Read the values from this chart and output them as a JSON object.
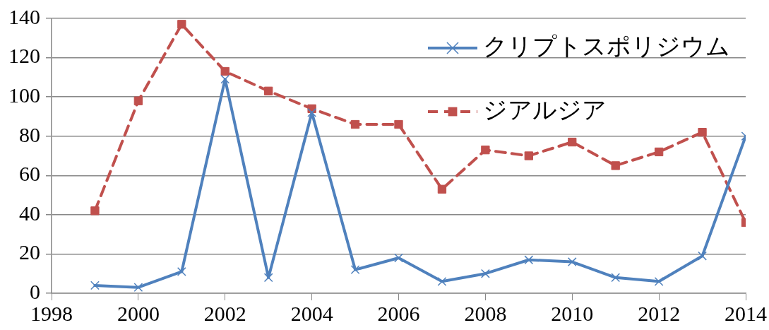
{
  "chart_data": {
    "type": "line",
    "x": [
      1999,
      2000,
      2001,
      2002,
      2003,
      2004,
      2005,
      2006,
      2007,
      2008,
      2009,
      2010,
      2011,
      2012,
      2013,
      2014
    ],
    "series": [
      {
        "name": "クリプトスポリジウム",
        "color": "#4f81bd",
        "marker": "cross",
        "line_style": "solid",
        "values": [
          4,
          3,
          11,
          109,
          8,
          92,
          12,
          18,
          6,
          10,
          17,
          16,
          8,
          6,
          19,
          80
        ]
      },
      {
        "name": "ジアルジア",
        "color": "#c0504d",
        "marker": "square",
        "line_style": "dashed",
        "values": [
          42,
          98,
          137,
          113,
          103,
          94,
          86,
          86,
          53,
          73,
          70,
          77,
          65,
          72,
          82,
          36
        ]
      }
    ],
    "xlim": [
      1998,
      2014
    ],
    "xticks": [
      1998,
      2000,
      2002,
      2004,
      2006,
      2008,
      2010,
      2012,
      2014
    ],
    "ylim": [
      0,
      140
    ],
    "yticks": [
      0,
      20,
      40,
      60,
      80,
      100,
      120,
      140
    ],
    "grid": "y",
    "legend": "top right"
  }
}
